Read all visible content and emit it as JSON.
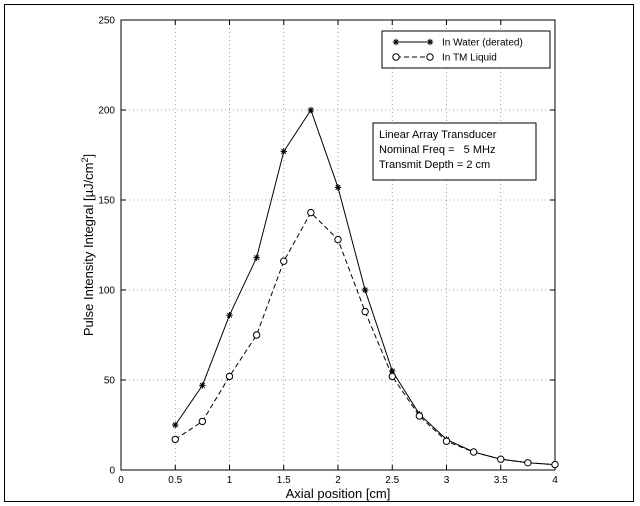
{
  "chart_data": {
    "type": "line",
    "xlabel": "Axial position [cm]",
    "ylabel": "Pulse Intensity Integral [µJ/cm",
    "ylabel_superscript": "2",
    "ylabel_suffix": "]",
    "xlim": [
      0,
      4
    ],
    "ylim": [
      0,
      250
    ],
    "xticks": [
      0,
      0.5,
      1,
      1.5,
      2,
      2.5,
      3,
      3.5,
      4
    ],
    "xtick_labels": [
      "0",
      "0.5",
      "1",
      "1.5",
      "2",
      "2.5",
      "3",
      "3.5",
      "4"
    ],
    "yticks": [
      0,
      50,
      100,
      150,
      200,
      250
    ],
    "ytick_labels": [
      "0",
      "50",
      "100",
      "150",
      "200",
      "250"
    ],
    "grid": true,
    "legend_position": "top-right",
    "series": [
      {
        "name": "In Water (derated)",
        "line": "solid",
        "marker": "asterisk",
        "x": [
          0.5,
          0.75,
          1.0,
          1.25,
          1.5,
          1.75,
          2.0,
          2.25,
          2.5,
          2.75,
          3.0,
          3.25,
          3.5,
          3.75,
          4.0
        ],
        "y": [
          25,
          47,
          86,
          118,
          177,
          200,
          157,
          100,
          55,
          31,
          17,
          10,
          6,
          4,
          3
        ]
      },
      {
        "name": "In TM Liquid",
        "line": "dashed",
        "marker": "circle",
        "x": [
          0.5,
          0.75,
          1.0,
          1.25,
          1.5,
          1.75,
          2.0,
          2.25,
          2.5,
          2.75,
          3.0,
          3.25,
          3.5,
          3.75,
          4.0
        ],
        "y": [
          17,
          27,
          52,
          75,
          116,
          143,
          128,
          88,
          52,
          30,
          16,
          10,
          6,
          4,
          3
        ]
      }
    ],
    "annotation": [
      "Linear Array Transducer",
      "Nominal Freq =   5 MHz",
      "Transmit Depth = 2 cm"
    ]
  }
}
